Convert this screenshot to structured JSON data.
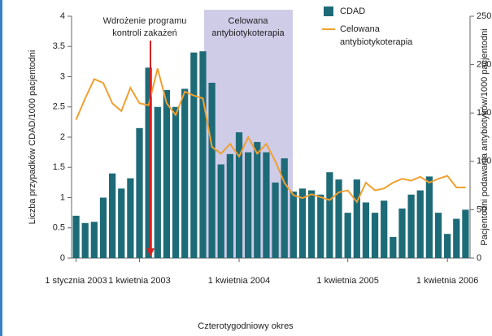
{
  "chart_data": {
    "type": "bar_line",
    "categories": [
      "1 stycznia 2003",
      null,
      null,
      null,
      null,
      null,
      null,
      "1 kwietnia 2003",
      null,
      null,
      null,
      null,
      null,
      null,
      null,
      null,
      null,
      null,
      "1 kwietnia 2004",
      null,
      null,
      null,
      null,
      null,
      null,
      null,
      null,
      null,
      null,
      null,
      "1 kwietnia 2005",
      null,
      null,
      null,
      null,
      null,
      null,
      null,
      null,
      null,
      null,
      "1 kwietnia 2006",
      null,
      null
    ],
    "series": [
      {
        "name": "CDAD",
        "color": "#1e6b78",
        "axis": "y",
        "values": [
          0.7,
          0.58,
          0.6,
          1.0,
          1.4,
          1.15,
          1.32,
          2.15,
          3.15,
          2.5,
          2.78,
          2.5,
          2.8,
          3.4,
          3.42,
          2.9,
          1.55,
          1.72,
          2.08,
          1.75,
          1.92,
          1.75,
          1.25,
          1.65,
          1.1,
          1.15,
          1.12,
          1.05,
          1.42,
          1.3,
          0.75,
          1.3,
          0.92,
          0.75,
          0.95,
          0.35,
          0.82,
          1.05,
          1.12,
          1.35,
          0.75,
          0.4,
          0.65,
          0.8
        ]
      },
      {
        "name": "Celowana antybiotykoterapia",
        "color": "#f0a030",
        "axis": "y2",
        "values": [
          143,
          165,
          185,
          181,
          160,
          152,
          176,
          160,
          158,
          196,
          160,
          148,
          172,
          168,
          165,
          115,
          108,
          118,
          105,
          125,
          108,
          118,
          100,
          78,
          65,
          62,
          66,
          63,
          60,
          68,
          70,
          58,
          78,
          70,
          72,
          78,
          82,
          80,
          84,
          78,
          82,
          85,
          73,
          73
        ]
      }
    ],
    "ylim": [
      0,
      4
    ],
    "yticks": [
      0,
      0.5,
      1,
      1.5,
      2,
      2.5,
      3,
      3.5,
      4
    ],
    "y2lim": [
      0,
      250
    ],
    "y2ticks": [
      0,
      50,
      100,
      150,
      200,
      250
    ],
    "y_label": "Liczba przypadków CDAD/1000 pacjentodni",
    "y2_label": "Pacjentodni podawania antybiotyków/1000 pacjentodni",
    "x_label": "Czterotygodniowy okres",
    "annotations": [
      "Wdrożenie programu",
      "kontroli zakażeń",
      "Celowana",
      "antybiotykoterapia"
    ]
  }
}
